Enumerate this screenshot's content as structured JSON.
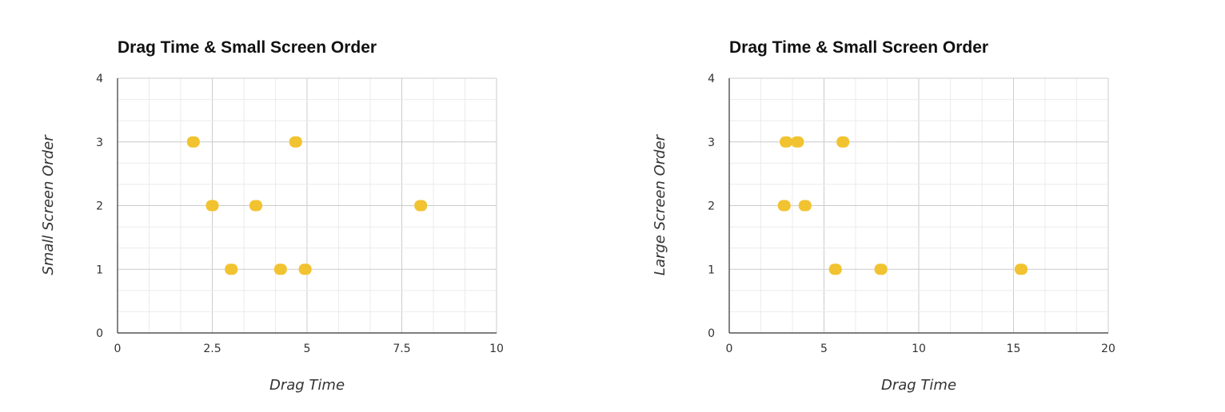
{
  "chart_data": [
    {
      "type": "scatter",
      "title": "Drag Time & Small Screen Order",
      "xlabel": "Drag Time",
      "ylabel": "Small Screen Order",
      "xlim": [
        0,
        10
      ],
      "ylim": [
        0,
        4
      ],
      "x_ticks": [
        "0",
        "2.5",
        "5",
        "7.5",
        "10"
      ],
      "y_ticks": [
        "0",
        "1",
        "2",
        "3",
        "4"
      ],
      "grid": true,
      "point_color": "#F2C330",
      "points": [
        {
          "x": 2.0,
          "y": 3
        },
        {
          "x": 4.7,
          "y": 3
        },
        {
          "x": 2.5,
          "y": 2
        },
        {
          "x": 3.65,
          "y": 2
        },
        {
          "x": 8.0,
          "y": 2
        },
        {
          "x": 3.0,
          "y": 1
        },
        {
          "x": 4.3,
          "y": 1
        },
        {
          "x": 4.95,
          "y": 1
        }
      ]
    },
    {
      "type": "scatter",
      "title": "Drag Time & Small Screen Order",
      "xlabel": "Drag Time",
      "ylabel": "Large Screen Order",
      "xlim": [
        0,
        20
      ],
      "ylim": [
        0,
        4
      ],
      "x_ticks": [
        "0",
        "5",
        "10",
        "15",
        "20"
      ],
      "y_ticks": [
        "0",
        "1",
        "2",
        "3",
        "4"
      ],
      "grid": true,
      "point_color": "#F2C330",
      "points": [
        {
          "x": 3.0,
          "y": 3
        },
        {
          "x": 3.6,
          "y": 3
        },
        {
          "x": 6.0,
          "y": 3
        },
        {
          "x": 2.9,
          "y": 2
        },
        {
          "x": 4.0,
          "y": 2
        },
        {
          "x": 5.6,
          "y": 1
        },
        {
          "x": 8.0,
          "y": 1
        },
        {
          "x": 15.4,
          "y": 1
        }
      ]
    }
  ]
}
